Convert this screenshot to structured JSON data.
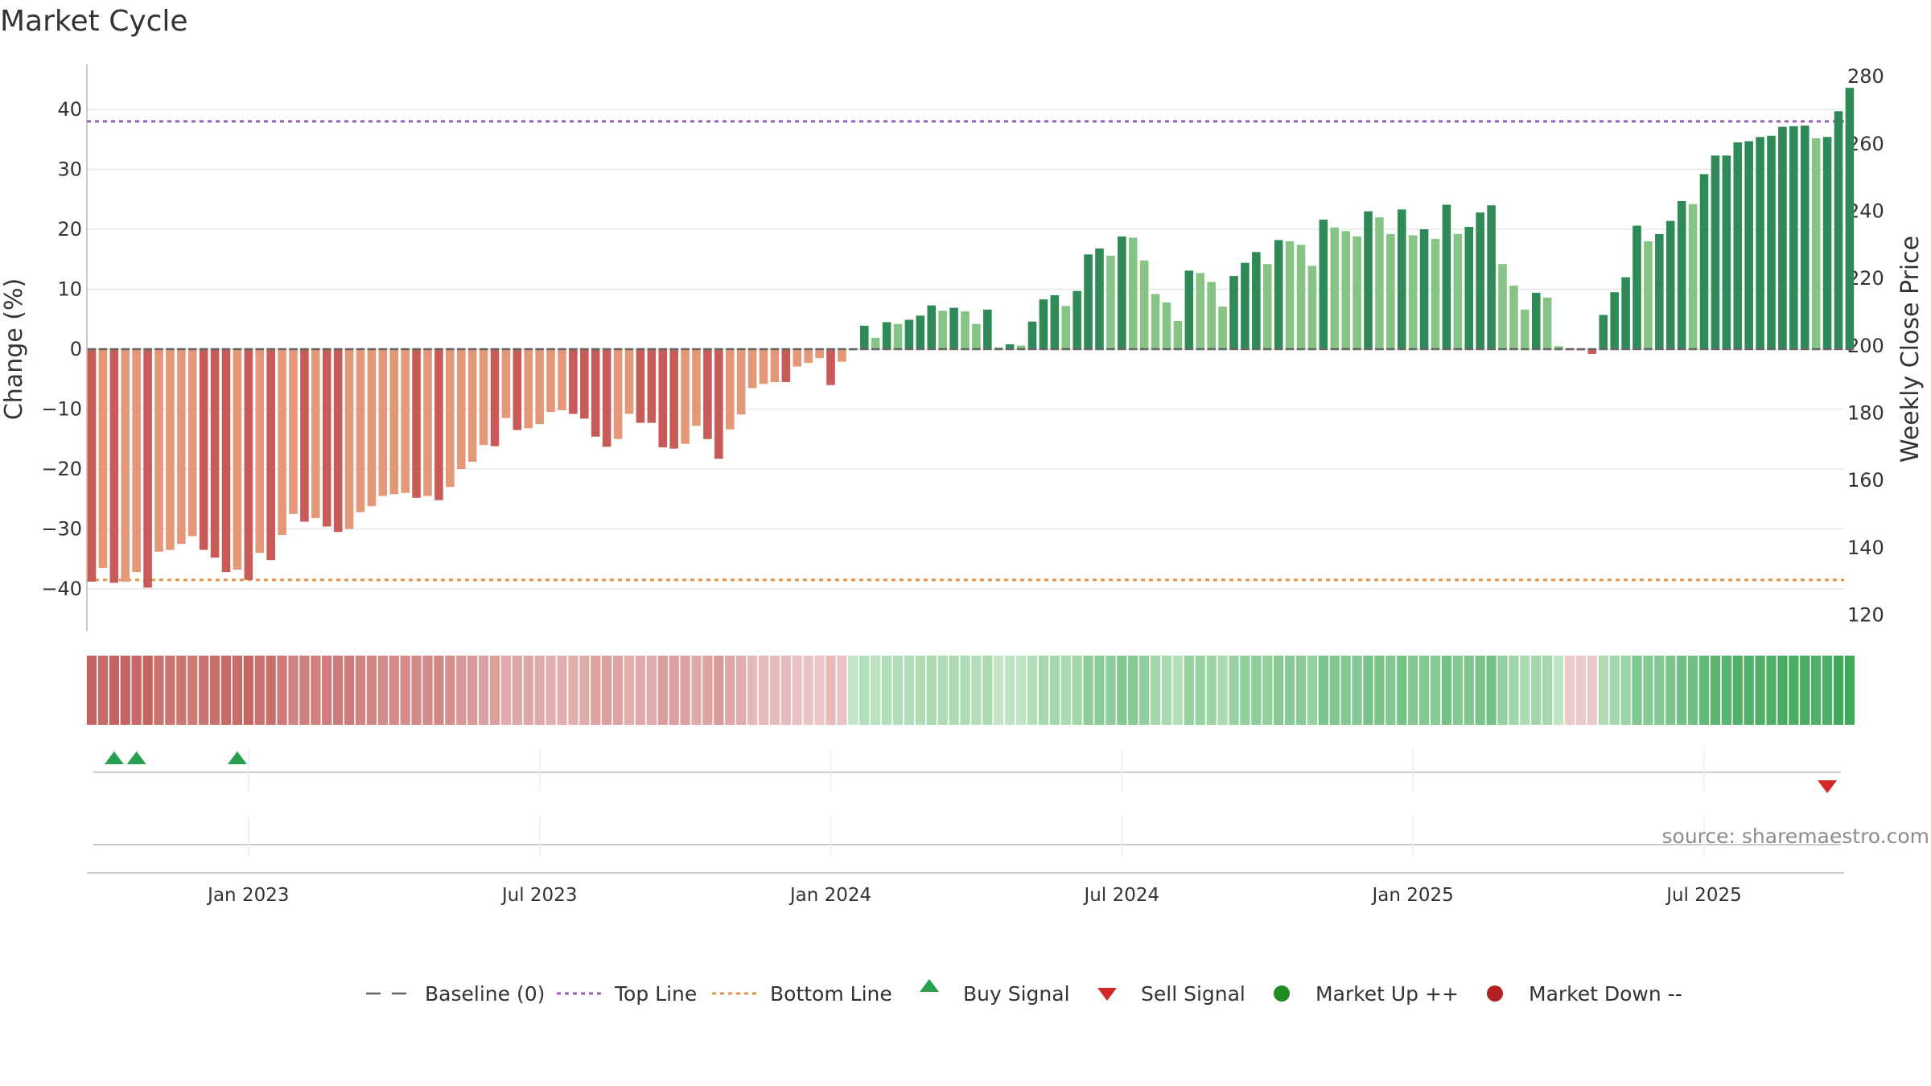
{
  "chart_data": {
    "type": "bar",
    "title": "Market Cycle",
    "ylabel": "Change (%)",
    "y2label": "Weekly Close Price",
    "ylim": [
      -48,
      48
    ],
    "y2lim": [
      113.5,
      284.5
    ],
    "yticks": [
      40,
      30,
      20,
      10,
      0,
      -10,
      -20,
      -30,
      -40
    ],
    "y2ticks": [
      280,
      260,
      240,
      220,
      200,
      180,
      160,
      140,
      120
    ],
    "top_line": 38,
    "bottom_line": -38.5,
    "baseline": 0,
    "xlim": [
      "2022-09-28",
      "2025-09-24"
    ],
    "xticks": [
      {
        "label": "Jan 2023",
        "date": "2023-01-04"
      },
      {
        "label": "Jul 2023",
        "date": "2023-07-05"
      },
      {
        "label": "Jan 2024",
        "date": "2024-01-03"
      },
      {
        "label": "Jul 2024",
        "date": "2024-07-03"
      },
      {
        "label": "Jan 2025",
        "date": "2025-01-01"
      },
      {
        "label": "Jul 2025",
        "date": "2025-07-02"
      }
    ],
    "series": [
      {
        "name": "Weekly change (%)",
        "start_date": "2022-09-28",
        "interval_days": 7,
        "values": [
          -38.8,
          -36.5,
          -39,
          -38.8,
          -37.2,
          -39.8,
          -33.8,
          -33.5,
          -32.5,
          -31.2,
          -33.5,
          -34.8,
          -37.2,
          -36.8,
          -38.5,
          -34,
          -35.2,
          -31,
          -27.5,
          -28.8,
          -28.2,
          -29.6,
          -30.5,
          -30,
          -27.2,
          -26.2,
          -24.5,
          -24.2,
          -24,
          -24.8,
          -24.5,
          -25.2,
          -23,
          -20,
          -18.8,
          -16,
          -16.2,
          -11.5,
          -13.5,
          -13.2,
          -12.5,
          -10.5,
          -10.2,
          -10.8,
          -11.6,
          -14.6,
          -16.3,
          -15,
          -10.8,
          -12.3,
          -12.3,
          -16.4,
          -16.6,
          -15.8,
          -12.8,
          -15,
          -18.3,
          -13.4,
          -10.9,
          -6.5,
          -5.8,
          -5.5,
          -5.5,
          -2.9,
          -2.3,
          -1.5,
          -6,
          -2.1,
          0,
          3.9,
          1.9,
          4.5,
          4.2,
          4.9,
          5.6,
          7.3,
          6.4,
          6.9,
          6.3,
          4.2,
          6.6,
          0.3,
          0.8,
          0.6,
          4.6,
          8.3,
          9,
          7.2,
          9.7,
          15.8,
          16.8,
          15.6,
          18.8,
          18.6,
          14.8,
          9.2,
          7.8,
          4.7,
          13.1,
          12.7,
          11.2,
          7.1,
          12.2,
          14.4,
          16.2,
          14.2,
          18.2,
          18,
          17.4,
          13.9,
          21.6,
          20.3,
          19.7,
          18.8,
          23,
          22,
          19.2,
          23.3,
          19,
          20,
          18.4,
          24.1,
          19.2,
          20.4,
          22.8,
          24,
          14.2,
          10.6,
          6.6,
          9.4,
          8.6,
          0.5,
          -0.1,
          -0.2,
          -0.8,
          5.7,
          9.5,
          12,
          20.6,
          18,
          19.2,
          21.4,
          24.7,
          24.2,
          29.2,
          32.3,
          32.3,
          34.5,
          34.7,
          35.4,
          35.6,
          37.1,
          37.2,
          37.3,
          35.2,
          35.4,
          39.7,
          43.6
        ]
      }
    ],
    "buy_signals": [
      "2022-10-12",
      "2022-10-26",
      "2022-12-28"
    ],
    "sell_signals": [
      "2025-09-17"
    ],
    "legend": [
      {
        "label": "Baseline (0)",
        "marker": "dash"
      },
      {
        "label": "Top Line",
        "marker": "dotted"
      },
      {
        "label": "Bottom Line",
        "marker": "dotted"
      },
      {
        "label": "Buy Signal",
        "marker": "triangle-up"
      },
      {
        "label": "Sell Signal",
        "marker": "triangle-down"
      },
      {
        "label": "Market Up ++",
        "marker": "circle"
      },
      {
        "label": "Market Down --",
        "marker": "circle"
      }
    ],
    "source": "source: sharemaestro.com"
  },
  "colors": {
    "strong_down": "#c85a57",
    "mild_down": "#e49877",
    "strong_up": "#2e8b57",
    "mild_up": "#85c485",
    "top_line": "#9b59b6",
    "bottom_line": "#e3923f",
    "baseline": "#666666",
    "buy": "#27a050",
    "sell": "#d62728",
    "market_up": "#228b22",
    "market_down": "#b22222",
    "grid": "#e6e6e6"
  }
}
